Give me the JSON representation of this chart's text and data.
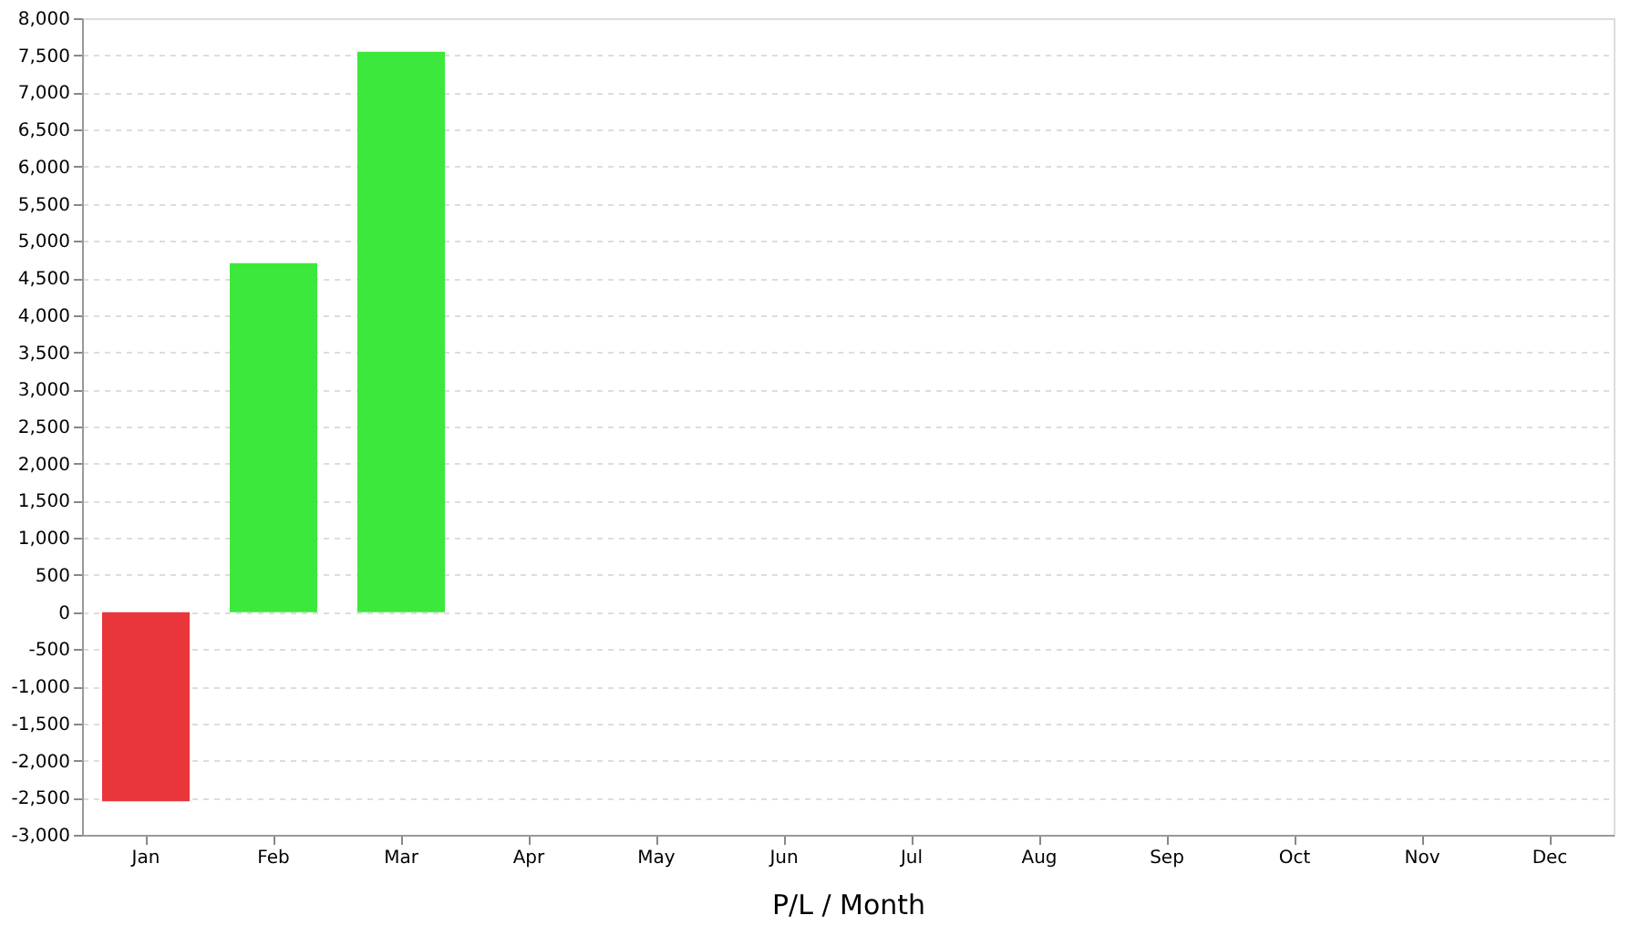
{
  "chart_data": {
    "type": "bar",
    "xlabel": "P/L / Month",
    "categories": [
      "Jan",
      "Feb",
      "Mar",
      "Apr",
      "May",
      "Jun",
      "Jul",
      "Aug",
      "Sep",
      "Oct",
      "Nov",
      "Dec"
    ],
    "values": [
      -2550,
      4700,
      7550,
      null,
      null,
      null,
      null,
      null,
      null,
      null,
      null,
      null
    ],
    "colors": [
      "#e8363b",
      "#3de83d",
      "#3de83d",
      "#3de83d",
      "#3de83d",
      "#3de83d",
      "#3de83d",
      "#3de83d",
      "#3de83d",
      "#3de83d",
      "#3de83d",
      "#3de83d"
    ],
    "ylim": [
      -3000,
      8000
    ],
    "yticks": [
      {
        "value": -3000,
        "label": "-3,000"
      },
      {
        "value": -2500,
        "label": "-2,500"
      },
      {
        "value": -2000,
        "label": "-2,000"
      },
      {
        "value": -1500,
        "label": "-1,500"
      },
      {
        "value": -1000,
        "label": "-1,000"
      },
      {
        "value": -500,
        "label": "-500"
      },
      0,
      500,
      {
        "value": 1000,
        "label": "1,000"
      },
      {
        "value": 1500,
        "label": "1,500"
      },
      {
        "value": 2000,
        "label": "2,000"
      },
      {
        "value": 2500,
        "label": "2,500"
      },
      {
        "value": 3000,
        "label": "3,000"
      },
      {
        "value": 3500,
        "label": "3,500"
      },
      {
        "value": 4000,
        "label": "4,000"
      },
      {
        "value": 4500,
        "label": "4,500"
      },
      {
        "value": 5000,
        "label": "5,000"
      },
      {
        "value": 5500,
        "label": "5,500"
      },
      {
        "value": 6000,
        "label": "6,000"
      },
      {
        "value": 6500,
        "label": "6,500"
      },
      {
        "value": 7000,
        "label": "7,000"
      },
      {
        "value": 7500,
        "label": "7,500"
      },
      {
        "value": 8000,
        "label": "8,000"
      }
    ],
    "grid": "y"
  }
}
